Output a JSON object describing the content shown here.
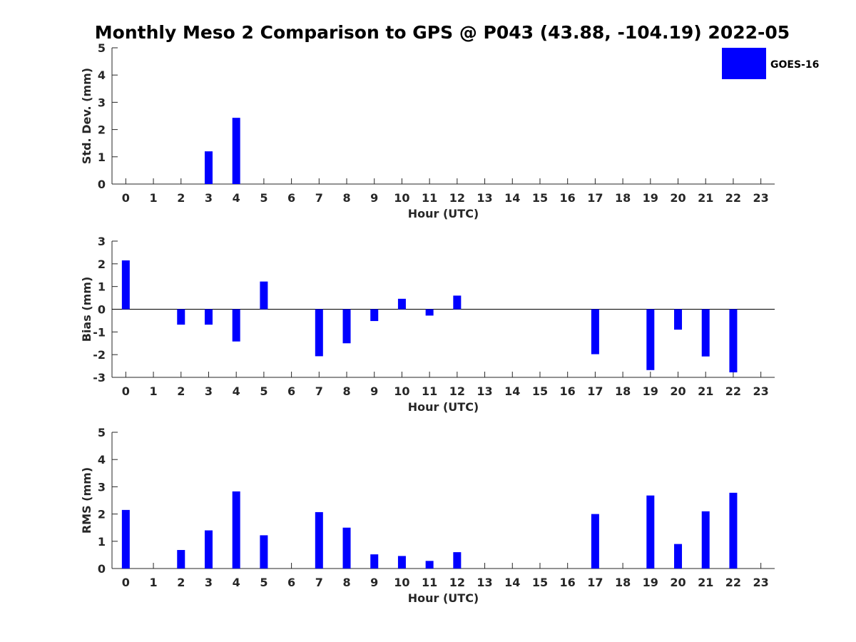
{
  "title": "Monthly Meso 2 Comparison to GPS @ P043 (43.88, -104.19) 2022-05",
  "legend": {
    "label": "GOES-16",
    "color": "#0000ff",
    "position": "top-right"
  },
  "chart_data": [
    {
      "type": "bar",
      "name": "std-dev",
      "xlabel": "Hour (UTC)",
      "ylabel": "Std. Dev. (mm)",
      "ylim": [
        0,
        5
      ],
      "yticks": [
        0,
        1,
        2,
        3,
        4,
        5
      ],
      "categories": [
        "0",
        "1",
        "2",
        "3",
        "4",
        "5",
        "6",
        "7",
        "8",
        "9",
        "10",
        "11",
        "12",
        "13",
        "14",
        "15",
        "16",
        "17",
        "18",
        "19",
        "20",
        "21",
        "22",
        "23"
      ],
      "series": [
        {
          "name": "GOES-16",
          "color": "#0000ff",
          "values": [
            null,
            null,
            null,
            1.2,
            2.43,
            null,
            null,
            null,
            null,
            null,
            null,
            null,
            null,
            null,
            null,
            null,
            null,
            null,
            null,
            null,
            null,
            null,
            null,
            null
          ]
        }
      ]
    },
    {
      "type": "bar",
      "name": "bias",
      "xlabel": "Hour (UTC)",
      "ylabel": "Bias (mm)",
      "ylim": [
        -3,
        3
      ],
      "yticks": [
        -3,
        -2,
        -1,
        0,
        1,
        2,
        3
      ],
      "categories": [
        "0",
        "1",
        "2",
        "3",
        "4",
        "5",
        "6",
        "7",
        "8",
        "9",
        "10",
        "11",
        "12",
        "13",
        "14",
        "15",
        "16",
        "17",
        "18",
        "19",
        "20",
        "21",
        "22",
        "23"
      ],
      "series": [
        {
          "name": "GOES-16",
          "color": "#0000ff",
          "values": [
            2.15,
            null,
            -0.68,
            -0.68,
            -1.42,
            1.22,
            null,
            -2.07,
            -1.5,
            -0.52,
            0.46,
            -0.28,
            0.6,
            null,
            null,
            null,
            null,
            -1.98,
            null,
            -2.68,
            -0.9,
            -2.08,
            -2.78,
            null
          ]
        }
      ]
    },
    {
      "type": "bar",
      "name": "rms",
      "xlabel": "Hour (UTC)",
      "ylabel": "RMS (mm)",
      "ylim": [
        0,
        5
      ],
      "yticks": [
        0,
        1,
        2,
        3,
        4,
        5
      ],
      "categories": [
        "0",
        "1",
        "2",
        "3",
        "4",
        "5",
        "6",
        "7",
        "8",
        "9",
        "10",
        "11",
        "12",
        "13",
        "14",
        "15",
        "16",
        "17",
        "18",
        "19",
        "20",
        "21",
        "22",
        "23"
      ],
      "series": [
        {
          "name": "GOES-16",
          "color": "#0000ff",
          "values": [
            2.15,
            null,
            0.68,
            1.4,
            2.83,
            1.22,
            null,
            2.07,
            1.5,
            0.52,
            0.46,
            0.28,
            0.6,
            null,
            null,
            null,
            null,
            2.0,
            null,
            2.68,
            0.9,
            2.1,
            2.78,
            null
          ]
        }
      ]
    }
  ]
}
